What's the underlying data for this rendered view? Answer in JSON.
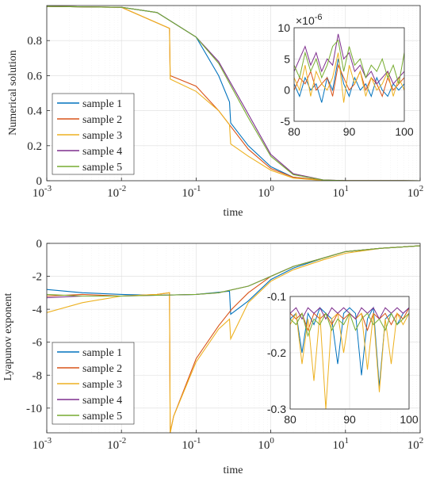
{
  "colors": {
    "sample_1": "#0072BD",
    "sample_2": "#D95319",
    "sample_3": "#EDB120",
    "sample_4": "#7E2F8E",
    "sample_5": "#77AC30"
  },
  "chart_data": [
    {
      "type": "line",
      "xscale": "log",
      "xlim": [
        0.001,
        100
      ],
      "ylim": [
        0,
        1
      ],
      "xlabel": "time",
      "ylabel": "Numerical solution",
      "x_ticks": [
        "10",
        "10",
        "10",
        "10",
        "10",
        "10"
      ],
      "x_tick_exponents": [
        "-3",
        "-2",
        "-1",
        "0",
        "1",
        "2"
      ],
      "y_ticks": [
        "0",
        "0.2",
        "0.4",
        "0.6",
        "0.8"
      ],
      "grid": true,
      "legend": [
        "sample 1",
        "sample 2",
        "sample 3",
        "sample 4",
        "sample 5"
      ],
      "legend_position": "lower-left",
      "series": [
        {
          "name": "sample 1",
          "x": [
            0.001,
            0.01,
            0.03,
            0.1,
            0.2,
            0.28,
            0.29,
            0.5,
            1,
            2,
            5,
            10,
            100
          ],
          "y": [
            0.995,
            0.99,
            0.96,
            0.82,
            0.6,
            0.45,
            0.33,
            0.2,
            0.08,
            0.02,
            0.003,
            0.0005,
            0
          ]
        },
        {
          "name": "sample 2",
          "x": [
            0.001,
            0.01,
            0.044,
            0.045,
            0.1,
            0.2,
            0.5,
            1,
            2,
            5,
            10,
            100
          ],
          "y": [
            0.995,
            0.99,
            0.87,
            0.6,
            0.54,
            0.4,
            0.18,
            0.07,
            0.02,
            0.003,
            0.0005,
            0
          ]
        },
        {
          "name": "sample 3",
          "x": [
            0.001,
            0.01,
            0.044,
            0.045,
            0.1,
            0.2,
            0.28,
            0.29,
            0.5,
            1,
            2,
            5,
            10,
            100
          ],
          "y": [
            0.995,
            0.99,
            0.87,
            0.58,
            0.51,
            0.4,
            0.32,
            0.21,
            0.14,
            0.06,
            0.015,
            0.002,
            0.0005,
            0
          ]
        },
        {
          "name": "sample 4",
          "x": [
            0.001,
            0.01,
            0.03,
            0.1,
            0.2,
            0.5,
            1,
            2,
            5,
            10,
            100
          ],
          "y": [
            0.995,
            0.99,
            0.96,
            0.82,
            0.68,
            0.38,
            0.15,
            0.04,
            0.005,
            0.0005,
            0
          ]
        },
        {
          "name": "sample 5",
          "x": [
            0.001,
            0.01,
            0.03,
            0.1,
            0.2,
            0.5,
            1,
            2,
            5,
            10,
            100
          ],
          "y": [
            0.995,
            0.99,
            0.96,
            0.82,
            0.67,
            0.36,
            0.14,
            0.035,
            0.004,
            0.0005,
            0
          ]
        }
      ],
      "inset": {
        "xlim": [
          80,
          100
        ],
        "ylim": [
          -5,
          10
        ],
        "x_ticks": [
          "80",
          "90",
          "100"
        ],
        "y_ticks": [
          "-5",
          "0",
          "5",
          "10"
        ],
        "y_multiplier_base": "×10",
        "y_multiplier_exponent": "-6",
        "series": [
          {
            "name": "sample 1",
            "x": [
              80,
              81,
              82,
              83,
              84,
              85,
              86,
              87,
              88,
              89,
              90,
              91,
              92,
              93,
              94,
              95,
              96,
              97,
              98,
              99,
              100
            ],
            "y": [
              1,
              -1,
              2,
              0,
              1,
              -2,
              2,
              0,
              5,
              1,
              -1,
              2,
              0,
              1,
              -1,
              2,
              0,
              -1,
              1,
              0,
              1
            ]
          },
          {
            "name": "sample 2",
            "x": [
              80,
              81,
              82,
              83,
              84,
              85,
              86,
              87,
              88,
              89,
              90,
              91,
              92,
              93,
              94,
              95,
              96,
              97,
              98,
              99,
              100
            ],
            "y": [
              0,
              2,
              1,
              3,
              0,
              1,
              2,
              -1,
              4,
              2,
              0,
              1,
              3,
              0,
              2,
              1,
              -1,
              2,
              0,
              1,
              2
            ]
          },
          {
            "name": "sample 3",
            "x": [
              80,
              81,
              82,
              83,
              84,
              85,
              86,
              87,
              88,
              89,
              90,
              91,
              92,
              93,
              94,
              95,
              96,
              97,
              98,
              99,
              100
            ],
            "y": [
              2,
              0,
              4,
              -1,
              3,
              1,
              0,
              2,
              6,
              -2,
              4,
              1,
              3,
              -1,
              2,
              0,
              1,
              3,
              -1,
              2,
              0
            ]
          },
          {
            "name": "sample 4",
            "x": [
              80,
              81,
              82,
              83,
              84,
              85,
              86,
              87,
              88,
              89,
              90,
              91,
              92,
              93,
              94,
              95,
              96,
              97,
              98,
              99,
              100
            ],
            "y": [
              3,
              5,
              7,
              4,
              6,
              3,
              5,
              4,
              9,
              5,
              6,
              3,
              4,
              2,
              3,
              1,
              2,
              3,
              1,
              2,
              3
            ]
          },
          {
            "name": "sample 5",
            "x": [
              80,
              81,
              82,
              83,
              84,
              85,
              86,
              87,
              88,
              89,
              90,
              91,
              92,
              93,
              94,
              95,
              96,
              97,
              98,
              99,
              100
            ],
            "y": [
              4,
              2,
              6,
              3,
              5,
              2,
              4,
              7,
              8,
              3,
              7,
              4,
              5,
              2,
              4,
              3,
              5,
              2,
              4,
              1,
              6
            ]
          }
        ]
      }
    },
    {
      "type": "line",
      "xscale": "log",
      "xlim": [
        0.001,
        100
      ],
      "ylim": [
        -11.5,
        0
      ],
      "xlabel": "time",
      "ylabel": "Lyapunov exponent",
      "x_ticks": [
        "10",
        "10",
        "10",
        "10",
        "10",
        "10"
      ],
      "x_tick_exponents": [
        "-3",
        "-2",
        "-1",
        "0",
        "1",
        "2"
      ],
      "y_ticks": [
        "0",
        "-2",
        "-4",
        "-6",
        "-8",
        "-10"
      ],
      "grid": true,
      "legend": [
        "sample 1",
        "sample 2",
        "sample 3",
        "sample 4",
        "sample 5"
      ],
      "legend_position": "lower-left",
      "series": [
        {
          "name": "sample 1",
          "x": [
            0.001,
            0.003,
            0.01,
            0.03,
            0.1,
            0.28,
            0.29,
            0.5,
            1,
            2,
            5,
            10,
            30,
            100
          ],
          "y": [
            -2.8,
            -3.0,
            -3.1,
            -3.15,
            -3.1,
            -2.9,
            -4.3,
            -3.5,
            -2.2,
            -1.5,
            -0.9,
            -0.5,
            -0.3,
            -0.15
          ]
        },
        {
          "name": "sample 2",
          "x": [
            0.001,
            0.003,
            0.01,
            0.03,
            0.044,
            0.045,
            0.05,
            0.1,
            0.2,
            0.3,
            0.5,
            1,
            2,
            5,
            10,
            30,
            100
          ],
          "y": [
            -3.2,
            -3.1,
            -3.2,
            -3.1,
            -3.0,
            -11.5,
            -10.5,
            -7.0,
            -5.0,
            -4.0,
            -3.0,
            -2.0,
            -1.4,
            -0.9,
            -0.5,
            -0.3,
            -0.15
          ]
        },
        {
          "name": "sample 3",
          "x": [
            0.001,
            0.003,
            0.01,
            0.03,
            0.044,
            0.045,
            0.05,
            0.1,
            0.2,
            0.28,
            0.29,
            0.5,
            1,
            2,
            5,
            10,
            30,
            100
          ],
          "y": [
            -4.2,
            -3.6,
            -3.2,
            -3.1,
            -3.0,
            -11.5,
            -10.5,
            -7.2,
            -5.2,
            -4.6,
            -5.8,
            -3.6,
            -2.3,
            -1.6,
            -1.0,
            -0.6,
            -0.3,
            -0.15
          ]
        },
        {
          "name": "sample 4",
          "x": [
            0.001,
            0.003,
            0.01,
            0.03,
            0.1,
            0.2,
            0.5,
            1,
            2,
            5,
            10,
            30,
            100
          ],
          "y": [
            -3.3,
            -3.2,
            -3.2,
            -3.15,
            -3.1,
            -3.0,
            -2.6,
            -2.0,
            -1.4,
            -0.9,
            -0.5,
            -0.3,
            -0.15
          ]
        },
        {
          "name": "sample 5",
          "x": [
            0.001,
            0.003,
            0.01,
            0.03,
            0.1,
            0.2,
            0.5,
            1,
            2,
            5,
            10,
            30,
            100
          ],
          "y": [
            -3.1,
            -3.2,
            -3.2,
            -3.15,
            -3.1,
            -3.0,
            -2.6,
            -2.0,
            -1.4,
            -0.9,
            -0.5,
            -0.3,
            -0.15
          ]
        }
      ],
      "inset": {
        "xlim": [
          80,
          100
        ],
        "ylim": [
          -0.3,
          -0.1
        ],
        "x_ticks": [
          "80",
          "90",
          "100"
        ],
        "y_ticks": [
          "-0.1",
          "-0.2",
          "-0.3"
        ],
        "series": [
          {
            "name": "sample 1",
            "x": [
              80,
              81,
              82,
              83,
              84,
              85,
              86,
              87,
              88,
              89,
              90,
              91,
              92,
              93,
              94,
              95,
              96,
              97,
              98,
              99,
              100
            ],
            "y": [
              -0.14,
              -0.13,
              -0.2,
              -0.13,
              -0.15,
              -0.12,
              -0.13,
              -0.14,
              -0.22,
              -0.13,
              -0.12,
              -0.13,
              -0.24,
              -0.14,
              -0.12,
              -0.26,
              -0.14,
              -0.13,
              -0.15,
              -0.13,
              -0.12
            ]
          },
          {
            "name": "sample 2",
            "x": [
              80,
              81,
              82,
              83,
              84,
              85,
              86,
              87,
              88,
              89,
              90,
              91,
              92,
              93,
              94,
              95,
              96,
              97,
              98,
              99,
              100
            ],
            "y": [
              -0.13,
              -0.14,
              -0.13,
              -0.16,
              -0.13,
              -0.14,
              -0.13,
              -0.15,
              -0.13,
              -0.14,
              -0.13,
              -0.14,
              -0.13,
              -0.16,
              -0.13,
              -0.14,
              -0.13,
              -0.15,
              -0.13,
              -0.14,
              -0.12
            ]
          },
          {
            "name": "sample 3",
            "x": [
              80,
              81,
              82,
              83,
              84,
              85,
              86,
              87,
              88,
              89,
              90,
              91,
              92,
              93,
              94,
              95,
              96,
              97,
              98,
              99,
              100
            ],
            "y": [
              -0.15,
              -0.13,
              -0.22,
              -0.14,
              -0.25,
              -0.13,
              -0.3,
              -0.14,
              -0.13,
              -0.2,
              -0.13,
              -0.14,
              -0.13,
              -0.23,
              -0.13,
              -0.27,
              -0.14,
              -0.22,
              -0.13,
              -0.15,
              -0.13
            ]
          },
          {
            "name": "sample 4",
            "x": [
              80,
              81,
              82,
              83,
              84,
              85,
              86,
              87,
              88,
              89,
              90,
              91,
              92,
              93,
              94,
              95,
              96,
              97,
              98,
              99,
              100
            ],
            "y": [
              -0.13,
              -0.12,
              -0.14,
              -0.12,
              -0.13,
              -0.12,
              -0.14,
              -0.12,
              -0.13,
              -0.12,
              -0.13,
              -0.14,
              -0.12,
              -0.13,
              -0.12,
              -0.14,
              -0.12,
              -0.13,
              -0.12,
              -0.13,
              -0.12
            ]
          },
          {
            "name": "sample 5",
            "x": [
              80,
              81,
              82,
              83,
              84,
              85,
              86,
              87,
              88,
              89,
              90,
              91,
              92,
              93,
              94,
              95,
              96,
              97,
              98,
              99,
              100
            ],
            "y": [
              -0.14,
              -0.15,
              -0.13,
              -0.17,
              -0.14,
              -0.15,
              -0.13,
              -0.16,
              -0.14,
              -0.15,
              -0.13,
              -0.16,
              -0.14,
              -0.13,
              -0.15,
              -0.14,
              -0.16,
              -0.13,
              -0.15,
              -0.14,
              -0.13
            ]
          }
        ]
      }
    }
  ]
}
